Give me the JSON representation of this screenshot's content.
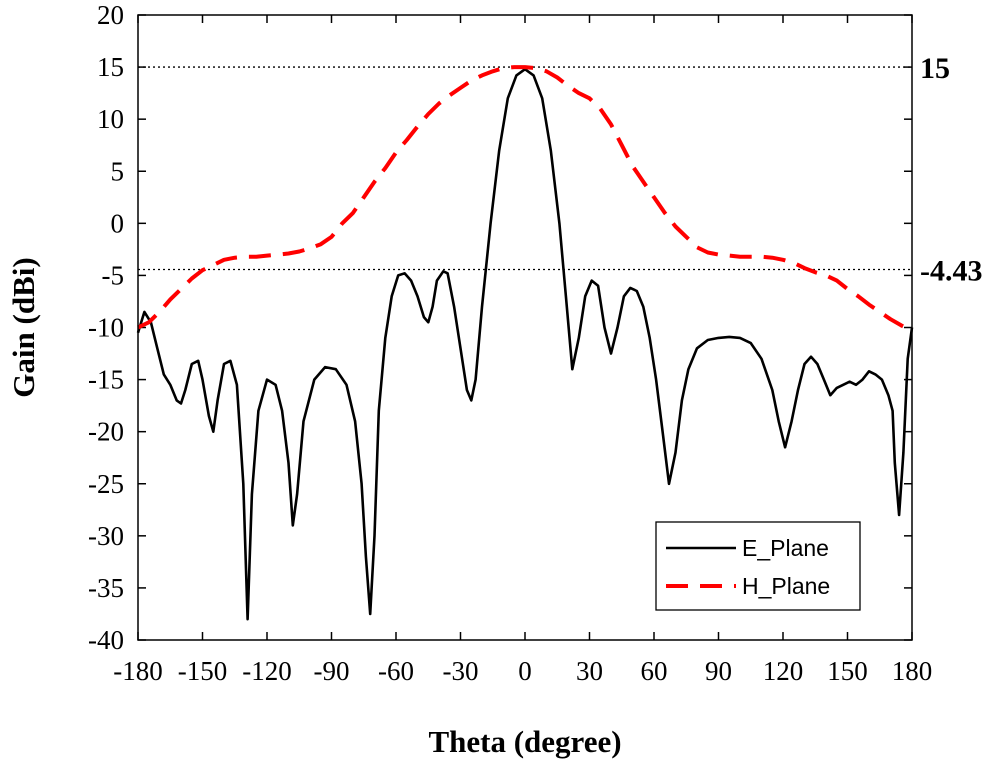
{
  "chart_data": {
    "type": "line",
    "title": "",
    "xlabel": "Theta (degree)",
    "ylabel": "Gain (dBi)",
    "xlim": [
      -180,
      180
    ],
    "ylim": [
      -40,
      20
    ],
    "xticks": [
      -180,
      -150,
      -120,
      -90,
      -60,
      -30,
      0,
      30,
      60,
      90,
      120,
      150,
      180
    ],
    "yticks": [
      -40,
      -35,
      -30,
      -25,
      -20,
      -15,
      -10,
      -5,
      0,
      5,
      10,
      15,
      20
    ],
    "grid": false,
    "legend_position": "bottom-right",
    "reference_lines": [
      {
        "y": 15,
        "label": "15",
        "style": "dotted"
      },
      {
        "y": -4.43,
        "label": "-4.43",
        "style": "dotted"
      }
    ],
    "series": [
      {
        "name": "E_Plane",
        "color": "#000000",
        "style": "solid",
        "x": [
          -180,
          -177,
          -174,
          -171,
          -168,
          -165,
          -162,
          -160,
          -158,
          -155,
          -152,
          -150,
          -147,
          -145,
          -143,
          -140,
          -137,
          -134,
          -131,
          -129,
          -127,
          -124,
          -120,
          -116,
          -113,
          -110,
          -108,
          -106,
          -103,
          -98,
          -93,
          -88,
          -83,
          -79,
          -76,
          -74,
          -72,
          -70,
          -68,
          -65,
          -62,
          -59,
          -56,
          -53,
          -50,
          -47,
          -45,
          -43,
          -41,
          -38,
          -36,
          -33,
          -30,
          -27,
          -25,
          -23,
          -20,
          -16,
          -12,
          -8,
          -4,
          0,
          4,
          8,
          12,
          16,
          19,
          22,
          25,
          28,
          31,
          34,
          37,
          40,
          43,
          46,
          49,
          52,
          55,
          58,
          61,
          64,
          67,
          70,
          73,
          76,
          80,
          85,
          90,
          95,
          100,
          105,
          110,
          115,
          118,
          121,
          124,
          127,
          130,
          133,
          136,
          139,
          142,
          145,
          148,
          151,
          154,
          157,
          160,
          163,
          166,
          169,
          171,
          172,
          174,
          176,
          178,
          180
        ],
        "y": [
          -10.5,
          -8.5,
          -9.5,
          -12,
          -14.5,
          -15.5,
          -17,
          -17.3,
          -16,
          -13.5,
          -13.2,
          -15,
          -18.5,
          -20,
          -17,
          -13.5,
          -13.2,
          -15.5,
          -25,
          -38,
          -26,
          -18,
          -15,
          -15.5,
          -18,
          -23,
          -29,
          -26,
          -19,
          -15,
          -13.8,
          -14,
          -15.5,
          -19,
          -25,
          -32,
          -37.5,
          -30,
          -18,
          -11,
          -7,
          -5,
          -4.8,
          -5.5,
          -7,
          -9,
          -9.5,
          -8,
          -5.5,
          -4.6,
          -4.8,
          -8,
          -12,
          -16,
          -17,
          -15,
          -8,
          0,
          7,
          12,
          14.2,
          14.8,
          14.2,
          12,
          7,
          0,
          -7,
          -14,
          -11,
          -7,
          -5.5,
          -6,
          -10,
          -12.5,
          -10,
          -7,
          -6.2,
          -6.5,
          -8,
          -11,
          -15,
          -20,
          -25,
          -22,
          -17,
          -14,
          -12,
          -11.2,
          -11,
          -10.9,
          -11,
          -11.5,
          -13,
          -16,
          -19,
          -21.5,
          -19,
          -16,
          -13.5,
          -12.8,
          -13.5,
          -15,
          -16.5,
          -15.8,
          -15.5,
          -15.2,
          -15.5,
          -15,
          -14.2,
          -14.5,
          -15,
          -16.5,
          -18,
          -23,
          -28,
          -22,
          -13,
          -10
        ]
      },
      {
        "name": "H_Plane",
        "color": "#ff0000",
        "style": "dashed",
        "x": [
          -180,
          -175,
          -170,
          -165,
          -160,
          -155,
          -150,
          -145,
          -140,
          -135,
          -130,
          -125,
          -120,
          -115,
          -110,
          -105,
          -100,
          -95,
          -90,
          -85,
          -80,
          -75,
          -70,
          -65,
          -60,
          -55,
          -50,
          -45,
          -40,
          -35,
          -30,
          -25,
          -20,
          -15,
          -10,
          -5,
          0,
          5,
          10,
          15,
          20,
          25,
          30,
          35,
          40,
          45,
          50,
          55,
          60,
          65,
          70,
          75,
          80,
          85,
          90,
          95,
          100,
          105,
          110,
          115,
          120,
          125,
          130,
          135,
          140,
          145,
          150,
          155,
          160,
          165,
          170,
          175,
          180
        ],
        "y": [
          -10,
          -9.5,
          -8.5,
          -7.3,
          -6.3,
          -5.3,
          -4.5,
          -4,
          -3.5,
          -3.3,
          -3.2,
          -3.2,
          -3.1,
          -3,
          -2.9,
          -2.7,
          -2.4,
          -2,
          -1.3,
          0,
          1,
          2.5,
          4,
          5.3,
          6.8,
          8,
          9.3,
          10.5,
          11.5,
          12.3,
          13,
          13.7,
          14.2,
          14.6,
          14.9,
          15,
          15,
          14.9,
          14.6,
          14,
          13.2,
          12.5,
          12,
          11,
          9.5,
          7.5,
          5.5,
          4,
          2.5,
          1,
          -0.3,
          -1.3,
          -2.3,
          -2.8,
          -3,
          -3.1,
          -3.2,
          -3.2,
          -3.2,
          -3.3,
          -3.5,
          -3.8,
          -4.3,
          -4.7,
          -5,
          -5.5,
          -6.3,
          -7,
          -7.8,
          -8.5,
          -9.2,
          -9.8,
          -10.3
        ]
      }
    ]
  }
}
